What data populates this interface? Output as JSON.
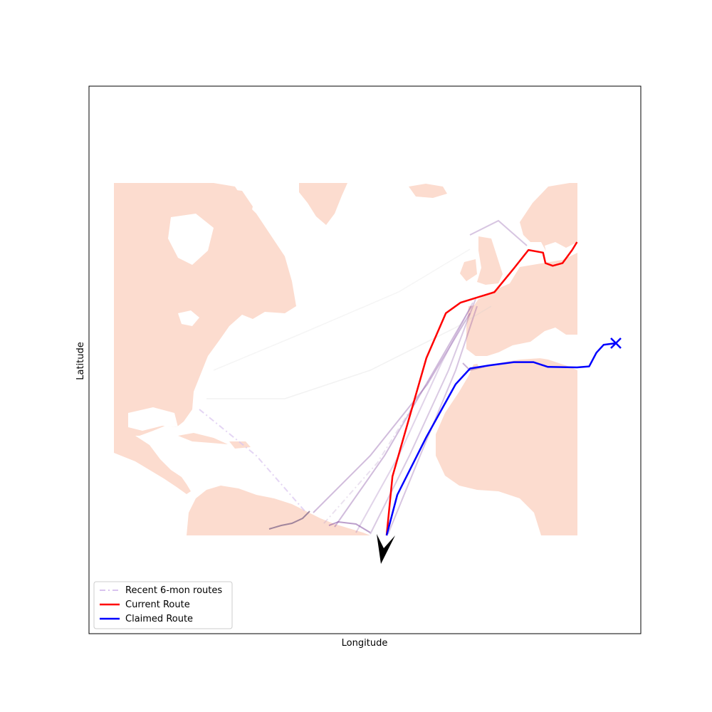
{
  "chart_data": {
    "type": "map",
    "title": "",
    "xlabel": "Longitude",
    "ylabel": "Latitude",
    "grid": false,
    "legend_placement": "lower-left",
    "land_color": "#fcdccf",
    "legend": [
      {
        "name": "Recent 6-mon routes",
        "color": "#d9c3ef",
        "style": "dashdot"
      },
      {
        "name": "Current Route",
        "color": "#ff0000",
        "style": "solid"
      },
      {
        "name": "Claimed Route",
        "color": "#0000ff",
        "style": "solid"
      }
    ],
    "series": [
      {
        "name": "Current Route",
        "color": "#ff0000",
        "points": [
          [
            -37.2,
            1.3
          ],
          [
            -36.0,
            12.5
          ],
          [
            -29.0,
            35.0
          ],
          [
            -25.0,
            43.5
          ],
          [
            -22.0,
            45.5
          ],
          [
            -15.0,
            47.5
          ],
          [
            -11.0,
            52.0
          ],
          [
            -8.0,
            55.5
          ],
          [
            -5.0,
            55.0
          ],
          [
            -4.5,
            53.0
          ],
          [
            -3.0,
            52.5
          ],
          [
            -1.0,
            53.0
          ],
          [
            1.0,
            55.5
          ],
          [
            2.0,
            57.0
          ]
        ]
      },
      {
        "name": "Claimed Route",
        "color": "#0000ff",
        "points": [
          [
            -37.2,
            1.3
          ],
          [
            -35.0,
            9.0
          ],
          [
            -29.0,
            20.0
          ],
          [
            -23.0,
            30.0
          ],
          [
            -20.0,
            33.0
          ],
          [
            -16.0,
            33.6
          ],
          [
            -11.0,
            34.2
          ],
          [
            -7.0,
            34.2
          ],
          [
            -4.0,
            33.3
          ],
          [
            2.0,
            33.2
          ],
          [
            4.5,
            33.4
          ],
          [
            6.0,
            36.0
          ],
          [
            7.5,
            37.5
          ],
          [
            10.0,
            37.8
          ]
        ]
      }
    ],
    "markers": [
      {
        "name": "claimed-end",
        "shape": "x",
        "color": "#0000ff",
        "lon": 10.0,
        "lat": 37.8
      },
      {
        "name": "current-position",
        "shape": "arrow",
        "color": "#000000",
        "lon": -37.2,
        "lat": 1.3,
        "heading": "south"
      }
    ]
  }
}
